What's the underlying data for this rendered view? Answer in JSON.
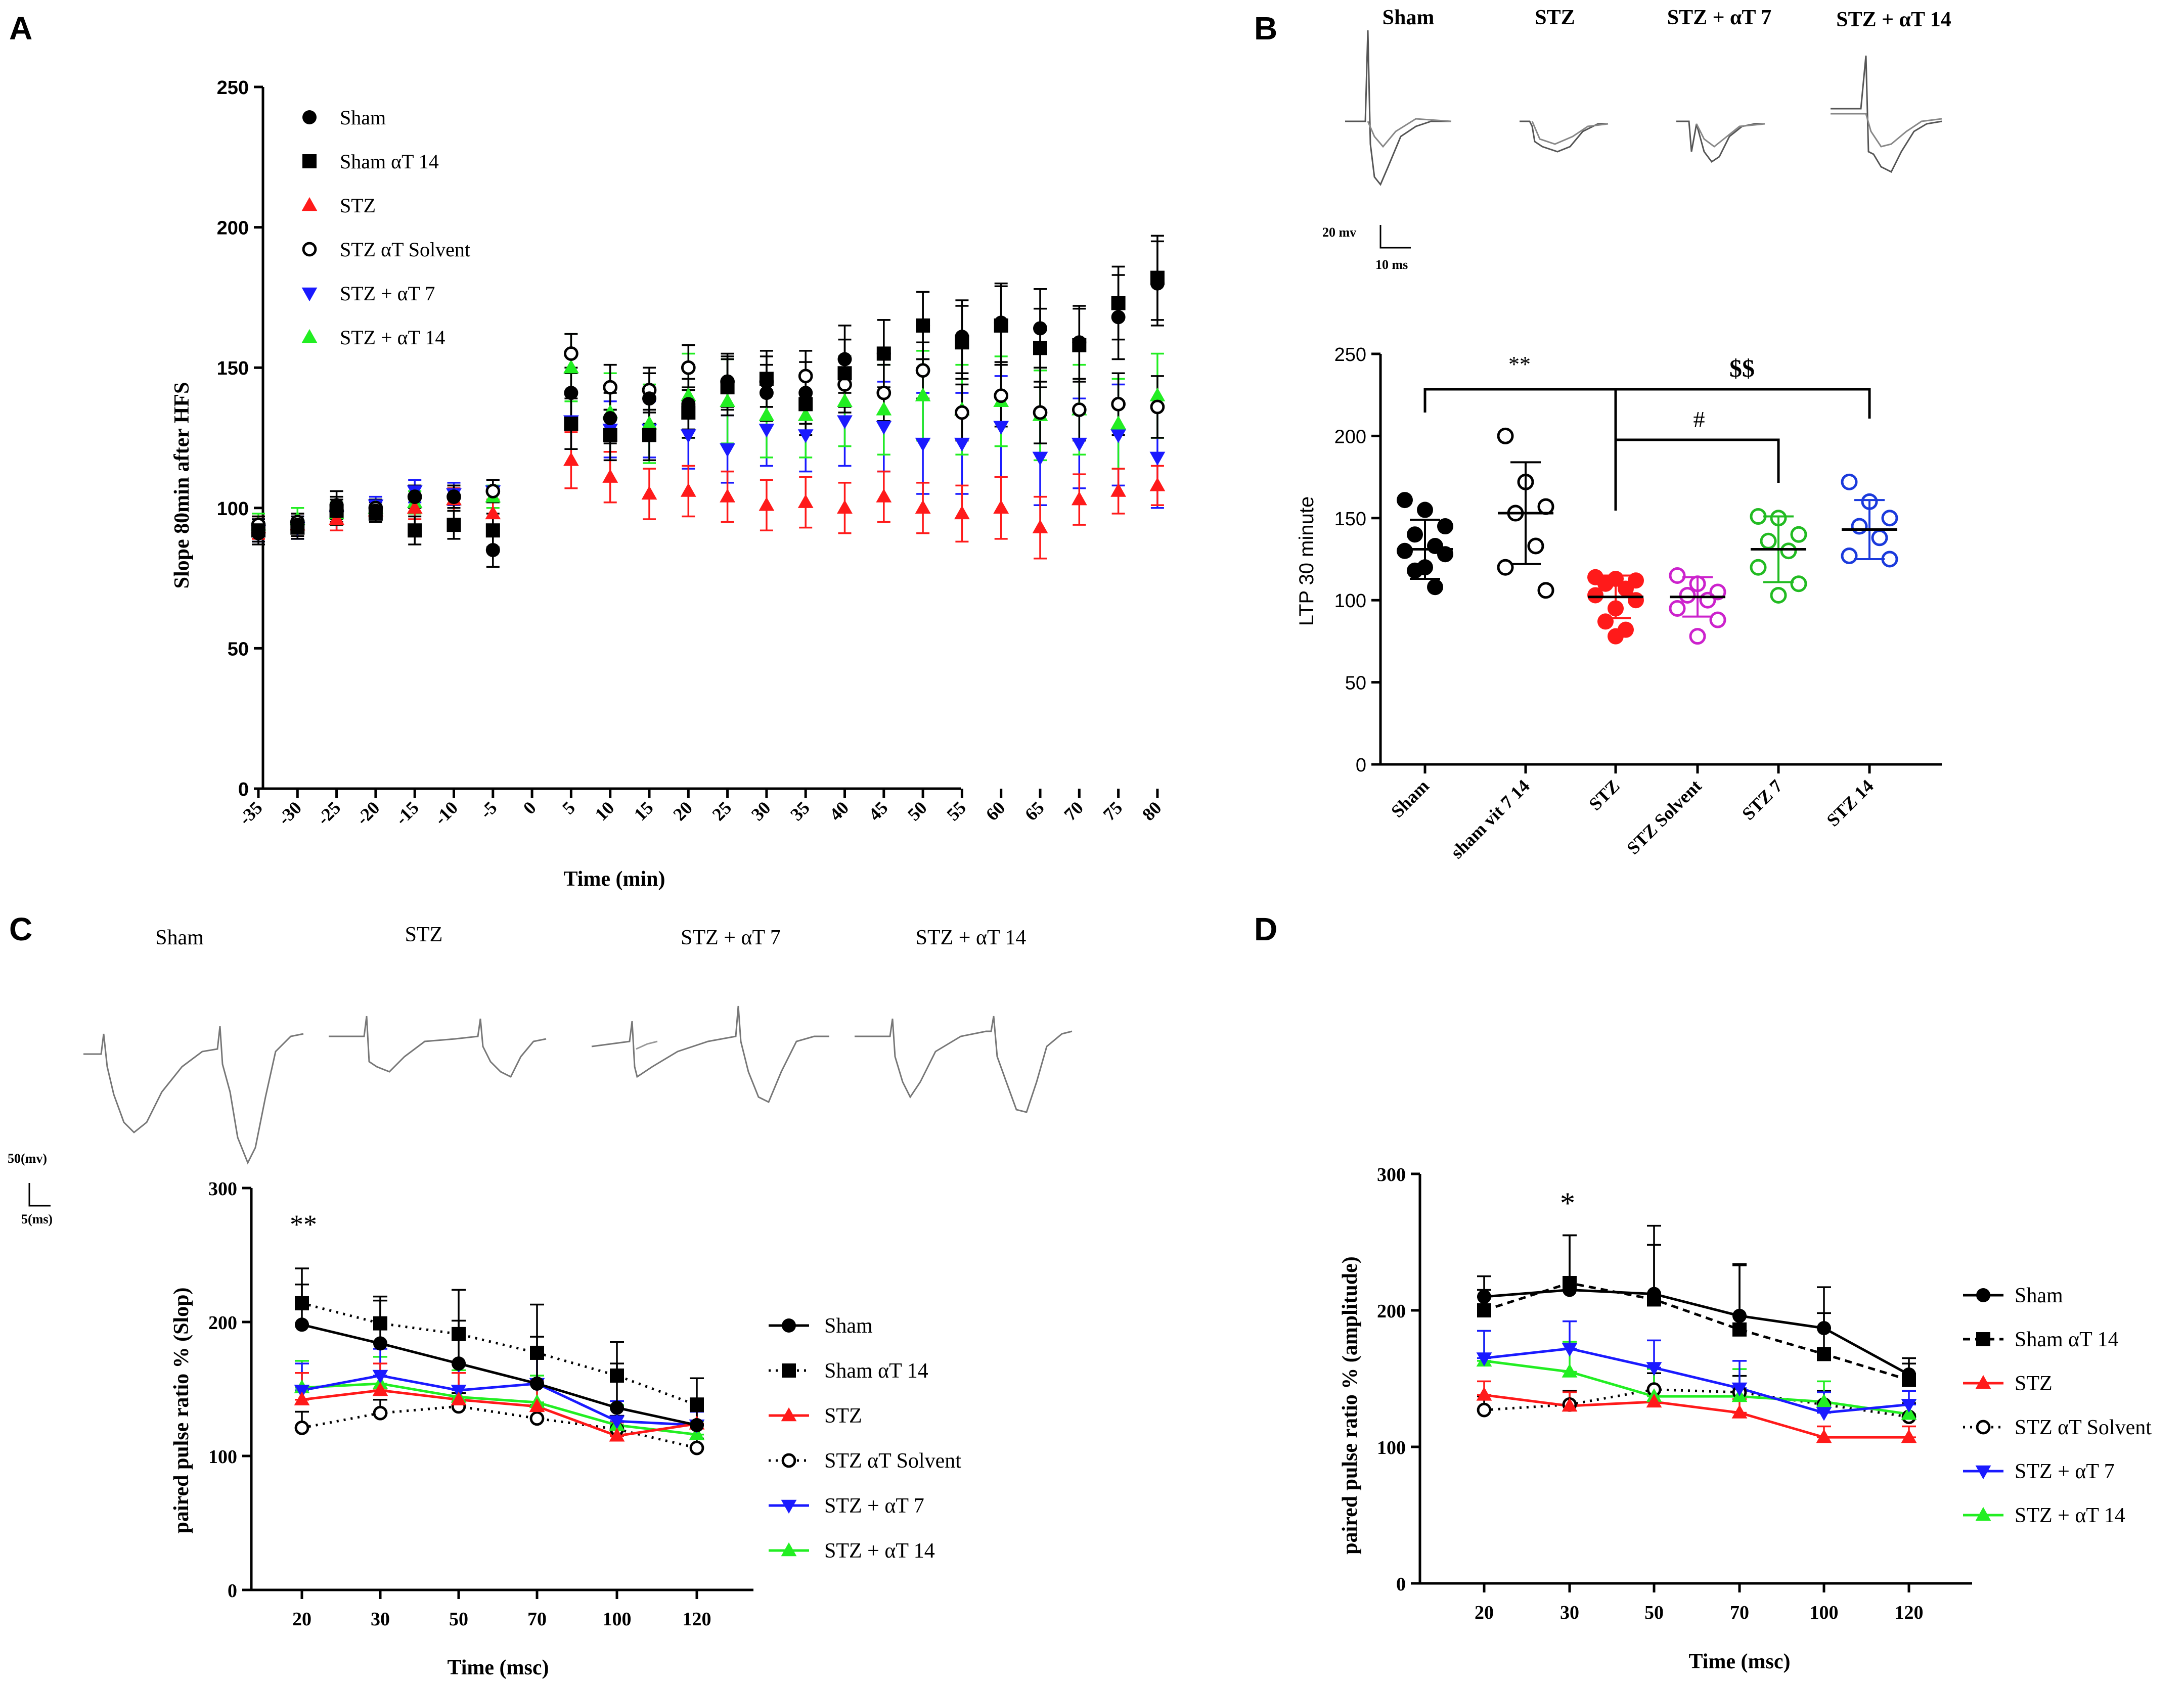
{
  "panels": {
    "a": {
      "letter": "A",
      "legend": [
        "Sham",
        "Sham αT 14",
        "STZ",
        "STZ αT Solvent",
        "STZ + αT 7",
        "STZ + αT 14"
      ]
    },
    "b": {
      "letter": "B",
      "trace_labels": [
        "Sham",
        "STZ",
        "STZ + αT 7",
        "STZ + αT 14"
      ],
      "scale_bar": {
        "v": "20 mv",
        "t": "10 ms"
      },
      "sig": {
        "double_star": "**",
        "dollar": "$$",
        "hash": "#"
      }
    },
    "c": {
      "letter": "C",
      "trace_labels": [
        "Sham",
        "STZ",
        "STZ + αT 7",
        "STZ + αT 14"
      ],
      "scale_bar": {
        "v": "50(mv)",
        "t": "5(ms)"
      },
      "sig": "**",
      "legend": [
        "Sham",
        "Sham αT 14",
        "STZ",
        "STZ αT Solvent",
        "STZ + αT 7",
        "STZ + αT 14"
      ]
    },
    "d": {
      "letter": "D",
      "sig": "*",
      "legend": [
        "Sham",
        "Sham αT 14",
        "STZ",
        "STZ αT Solvent",
        "STZ + αT 7",
        "STZ + αT 14"
      ]
    }
  },
  "colors": {
    "sham": "#000000",
    "sham_at14": "#000000",
    "stz": "#ff1a1a",
    "stz_solvent": "#000000",
    "stz_at7": "#1a1aff",
    "stz_at14": "#22ee22",
    "stz_solvent_b": "#cc22cc",
    "stz_at14_b": "#1a3adc",
    "stz_at7_b": "#22bb22"
  },
  "chart_data": [
    {
      "id": "A",
      "type": "scatter",
      "title": "",
      "xlabel": "Time (min)",
      "ylabel": "Slope 80min after HFS",
      "x": [
        -35,
        -30,
        -25,
        -20,
        -15,
        -10,
        -5,
        0,
        5,
        10,
        15,
        20,
        25,
        30,
        35,
        40,
        45,
        50,
        55,
        60,
        65,
        70,
        75,
        80
      ],
      "xtick_labels": [
        "-35",
        "-30",
        "-25",
        "-20",
        "-15",
        "-10",
        "-5",
        "0",
        "5",
        "10",
        "15",
        "20",
        "25",
        "30",
        "35",
        "40",
        "45",
        "50",
        "55",
        "60",
        "65",
        "70",
        "75",
        "80"
      ],
      "ylim": [
        0,
        250
      ],
      "yticks": [
        0,
        50,
        100,
        150,
        200,
        250
      ],
      "series": [
        {
          "name": "Sham",
          "marker": "circle",
          "color": "#000000",
          "x": [
            -35,
            -30,
            -25,
            -20,
            -15,
            -10,
            -5,
            5,
            10,
            15,
            20,
            25,
            30,
            35,
            40,
            45,
            50,
            55,
            60,
            65,
            70,
            75,
            80
          ],
          "values": [
            91,
            94,
            101,
            99,
            104,
            104,
            85,
            141,
            132,
            139,
            137,
            145,
            141,
            141,
            153,
            155,
            165,
            161,
            166,
            164,
            159,
            168,
            180
          ],
          "err": [
            4,
            4,
            5,
            3,
            4,
            4,
            6,
            9,
            9,
            9,
            9,
            10,
            10,
            11,
            12,
            12,
            12,
            13,
            14,
            14,
            13,
            15,
            15
          ]
        },
        {
          "name": "Sham αT 14",
          "marker": "square",
          "color": "#000000",
          "x": [
            -35,
            -30,
            -25,
            -20,
            -15,
            -10,
            -5,
            5,
            10,
            15,
            20,
            25,
            30,
            35,
            40,
            45,
            50,
            55,
            60,
            65,
            70,
            75,
            80
          ],
          "values": [
            92,
            93,
            99,
            98,
            92,
            94,
            92,
            130,
            126,
            126,
            134,
            143,
            146,
            137,
            148,
            155,
            165,
            159,
            165,
            157,
            158,
            173,
            182
          ],
          "err": [
            4,
            4,
            5,
            3,
            5,
            5,
            6,
            9,
            9,
            9,
            9,
            10,
            10,
            11,
            12,
            12,
            12,
            13,
            14,
            14,
            13,
            13,
            15
          ]
        },
        {
          "name": "STZ",
          "marker": "triangle-up",
          "color": "#ff1a1a",
          "x": [
            -35,
            -30,
            -25,
            -20,
            -15,
            -10,
            -5,
            5,
            10,
            15,
            20,
            25,
            30,
            35,
            40,
            45,
            50,
            55,
            60,
            65,
            70,
            75,
            80
          ],
          "values": [
            93,
            94,
            96,
            99,
            100,
            103,
            98,
            117,
            111,
            105,
            106,
            104,
            101,
            102,
            100,
            104,
            100,
            98,
            100,
            93,
            103,
            106,
            108
          ],
          "err": [
            4,
            4,
            4,
            3,
            4,
            4,
            5,
            10,
            9,
            9,
            9,
            9,
            9,
            9,
            9,
            9,
            9,
            10,
            11,
            11,
            9,
            8,
            7
          ]
        },
        {
          "name": "STZ αT Solvent",
          "marker": "circle-open",
          "color": "#000000",
          "x": [
            -35,
            -30,
            -25,
            -20,
            -15,
            -10,
            -5,
            5,
            10,
            15,
            20,
            25,
            30,
            35,
            40,
            45,
            50,
            55,
            60,
            65,
            70,
            75,
            80
          ],
          "values": [
            94,
            95,
            99,
            100,
            104,
            104,
            106,
            155,
            143,
            142,
            150,
            145,
            145,
            147,
            144,
            141,
            149,
            134,
            140,
            134,
            135,
            137,
            136
          ],
          "err": [
            3,
            3,
            4,
            3,
            4,
            4,
            4,
            7,
            8,
            8,
            8,
            9,
            9,
            9,
            10,
            10,
            10,
            10,
            11,
            11,
            11,
            11,
            11
          ]
        },
        {
          "name": "STZ + αT 7",
          "marker": "triangle-down",
          "color": "#1a1aff",
          "x": [
            -35,
            -30,
            -25,
            -20,
            -15,
            -10,
            -5,
            5,
            10,
            15,
            20,
            25,
            30,
            35,
            40,
            45,
            50,
            55,
            60,
            65,
            70,
            75,
            80
          ],
          "values": [
            92,
            93,
            97,
            101,
            106,
            105,
            106,
            131,
            128,
            128,
            126,
            121,
            128,
            126,
            131,
            129,
            123,
            123,
            129,
            118,
            123,
            126,
            118
          ],
          "err": [
            4,
            4,
            5,
            3,
            4,
            4,
            4,
            10,
            10,
            10,
            12,
            12,
            13,
            13,
            16,
            16,
            18,
            18,
            18,
            17,
            16,
            18,
            18
          ]
        },
        {
          "name": "STZ + αT 14",
          "marker": "triangle-up",
          "color": "#22ee22",
          "x": [
            -35,
            -30,
            -25,
            -20,
            -15,
            -10,
            -5,
            5,
            10,
            15,
            20,
            25,
            30,
            35,
            40,
            45,
            50,
            55,
            60,
            65,
            70,
            75,
            80
          ],
          "values": [
            94,
            96,
            98,
            100,
            102,
            103,
            104,
            150,
            134,
            130,
            140,
            138,
            133,
            133,
            138,
            135,
            140,
            135,
            138,
            133,
            135,
            130,
            140
          ],
          "err": [
            4,
            4,
            4,
            3,
            4,
            4,
            4,
            12,
            14,
            14,
            15,
            15,
            15,
            15,
            16,
            16,
            16,
            16,
            16,
            16,
            16,
            16,
            15
          ]
        }
      ]
    },
    {
      "id": "B",
      "type": "scatter",
      "title": "",
      "xlabel": "",
      "ylabel": "LTP 30 minute",
      "categories": [
        "Sham",
        "sham vit 7 14",
        "STZ",
        "STZ  Solvent",
        "STZ  7",
        "STZ 14"
      ],
      "ylim": [
        0,
        250
      ],
      "yticks": [
        0,
        50,
        100,
        150,
        200,
        250
      ],
      "groups": [
        {
          "name": "Sham",
          "color": "#000000",
          "filled": true,
          "mean": 131,
          "sd": 18,
          "points": [
            161,
            155,
            145,
            140,
            133,
            130,
            128,
            120,
            118,
            108
          ]
        },
        {
          "name": "sham vit 7 14",
          "color": "#000000",
          "filled": false,
          "mean": 153,
          "sd": 31,
          "points": [
            200,
            172,
            157,
            153,
            133,
            120,
            106
          ]
        },
        {
          "name": "STZ",
          "color": "#ff1a1a",
          "filled": true,
          "mean": 102,
          "sd": 13,
          "points": [
            114,
            113,
            112,
            110,
            107,
            103,
            100,
            95,
            87,
            82,
            78
          ]
        },
        {
          "name": "STZ  Solvent",
          "color": "#cc22cc",
          "filled": false,
          "mean": 102,
          "sd": 12,
          "points": [
            115,
            110,
            105,
            103,
            100,
            95,
            88,
            78
          ]
        },
        {
          "name": "STZ  7",
          "color": "#22bb22",
          "filled": false,
          "mean": 131,
          "sd": 20,
          "points": [
            151,
            150,
            140,
            136,
            130,
            120,
            110,
            103
          ]
        },
        {
          "name": "STZ 14",
          "color": "#1a3adc",
          "filled": false,
          "mean": 143,
          "sd": 18,
          "points": [
            172,
            160,
            150,
            145,
            138,
            127,
            125
          ]
        }
      ],
      "annotations": [
        "**",
        "$$",
        "#"
      ]
    },
    {
      "id": "C",
      "type": "line",
      "title": "",
      "xlabel": "Time (msc)",
      "ylabel": "paired pulse ratio % (Slop)",
      "categories": [
        "20",
        "30",
        "50",
        "70",
        "100",
        "120"
      ],
      "ylim": [
        0,
        300
      ],
      "yticks": [
        0,
        100,
        200,
        300
      ],
      "series": [
        {
          "name": "Sham",
          "marker": "circle",
          "color": "#000000",
          "dash": "solid",
          "values": [
            198,
            184,
            169,
            154,
            136,
            123
          ],
          "err": [
            30,
            32,
            32,
            35,
            33,
            20
          ]
        },
        {
          "name": "Sham αT 14",
          "marker": "square",
          "color": "#000000",
          "dash": "dotted",
          "values": [
            214,
            199,
            191,
            177,
            160,
            138
          ],
          "err": [
            26,
            20,
            33,
            36,
            25,
            20
          ]
        },
        {
          "name": "STZ",
          "marker": "triangle-up",
          "color": "#ff1a1a",
          "dash": "solid",
          "values": [
            142,
            149,
            142,
            137,
            115,
            124
          ],
          "err": [
            20,
            20,
            20,
            20,
            10,
            10
          ]
        },
        {
          "name": "STZ αT Solvent",
          "marker": "circle-open",
          "color": "#000000",
          "dash": "dotted",
          "values": [
            121,
            132,
            137,
            128,
            120,
            106
          ],
          "err": [
            12,
            10,
            10,
            10,
            10,
            7
          ]
        },
        {
          "name": "STZ + αT 7",
          "marker": "triangle-down",
          "color": "#1a1aff",
          "dash": "solid",
          "values": [
            149,
            160,
            149,
            154,
            126,
            123
          ],
          "err": [
            20,
            20,
            20,
            20,
            15,
            10
          ]
        },
        {
          "name": "STZ + αT 14",
          "marker": "triangle-up",
          "color": "#22ee22",
          "dash": "solid",
          "values": [
            151,
            154,
            144,
            140,
            123,
            116
          ],
          "err": [
            20,
            20,
            20,
            20,
            15,
            10
          ]
        }
      ],
      "annotation": "**"
    },
    {
      "id": "D",
      "type": "line",
      "title": "",
      "xlabel": "Time (msc)",
      "ylabel": "paired pulse ratio % (amplitude)",
      "categories": [
        "20",
        "30",
        "50",
        "70",
        "100",
        "120"
      ],
      "ylim": [
        0,
        300
      ],
      "yticks": [
        0,
        100,
        200,
        300
      ],
      "series": [
        {
          "name": "Sham",
          "marker": "circle",
          "color": "#000000",
          "dash": "solid",
          "values": [
            210,
            215,
            212,
            196,
            187,
            153
          ],
          "err": [
            15,
            40,
            50,
            38,
            30,
            12
          ]
        },
        {
          "name": "Sham αT 14",
          "marker": "square",
          "color": "#000000",
          "dash": "dashed",
          "values": [
            200,
            220,
            208,
            186,
            168,
            149
          ],
          "err": [
            15,
            35,
            40,
            47,
            30,
            12
          ]
        },
        {
          "name": "STZ",
          "marker": "triangle-up",
          "color": "#ff1a1a",
          "dash": "solid",
          "values": [
            138,
            130,
            133,
            125,
            107,
            107
          ],
          "err": [
            10,
            10,
            10,
            10,
            8,
            8
          ]
        },
        {
          "name": "STZ αT Solvent",
          "marker": "circle-open",
          "color": "#000000",
          "dash": "dotted",
          "values": [
            127,
            131,
            142,
            140,
            131,
            122
          ],
          "err": [
            10,
            10,
            12,
            12,
            10,
            10
          ]
        },
        {
          "name": "STZ + αT 7",
          "marker": "triangle-down",
          "color": "#1a1aff",
          "dash": "solid",
          "values": [
            165,
            172,
            158,
            143,
            125,
            131
          ],
          "err": [
            20,
            20,
            20,
            20,
            15,
            10
          ]
        },
        {
          "name": "STZ + αT 14",
          "marker": "triangle-up",
          "color": "#22ee22",
          "dash": "solid",
          "values": [
            163,
            155,
            137,
            137,
            133,
            124
          ],
          "err": [
            22,
            22,
            20,
            20,
            15,
            10
          ]
        }
      ],
      "annotation": "*"
    }
  ]
}
